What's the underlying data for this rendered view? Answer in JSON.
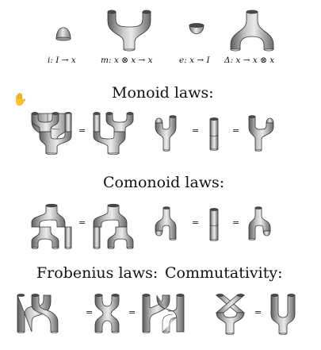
{
  "generators": {
    "unit": "i: I → x",
    "multiplication": "m: x ⊗ x → x",
    "counit": "e: x → I",
    "comultiplication": "Δ: x → x ⊗ x"
  },
  "headings": {
    "monoid": "Monoid laws:",
    "comonoid": "Comonoid laws:",
    "frobenius": "Frobenius laws:",
    "commutativity": "Commutativity:"
  },
  "equals_sign": "=",
  "cursor_icon": "hand-cursor-icon"
}
